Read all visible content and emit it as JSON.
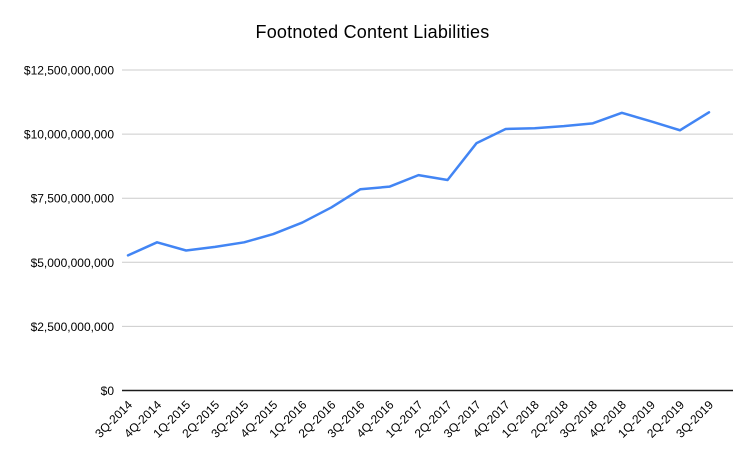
{
  "chart_data": {
    "type": "line",
    "title": "Footnoted Content Liabilities",
    "xlabel": "",
    "ylabel": "",
    "ylim": [
      0,
      12500000000
    ],
    "grid": true,
    "legend": "none",
    "categories": [
      "3Q-2014",
      "4Q-2014",
      "1Q-2015",
      "2Q-2015",
      "3Q-2015",
      "4Q-2015",
      "1Q-2016",
      "2Q-2016",
      "3Q-2016",
      "4Q-2016",
      "1Q-2017",
      "2Q-2017",
      "3Q-2017",
      "4Q-2017",
      "1Q-2018",
      "2Q-2018",
      "3Q-2018",
      "4Q-2018",
      "1Q-2019",
      "2Q-2019",
      "3Q-2019"
    ],
    "series": [
      {
        "name": "Footnoted Content Liabilities",
        "values": [
          5270000000,
          5780000000,
          5460000000,
          5600000000,
          5780000000,
          6100000000,
          6550000000,
          7140000000,
          7850000000,
          7950000000,
          8400000000,
          8210000000,
          9650000000,
          10200000000,
          10230000000,
          10310000000,
          10420000000,
          10830000000,
          10500000000,
          10150000000,
          10850000000
        ]
      }
    ],
    "y_ticks": [
      {
        "value": 0,
        "label": "$0"
      },
      {
        "value": 2500000000,
        "label": "$2,500,000,000"
      },
      {
        "value": 5000000000,
        "label": "$5,000,000,000"
      },
      {
        "value": 7500000000,
        "label": "$7,500,000,000"
      },
      {
        "value": 10000000000,
        "label": "$10,000,000,000"
      },
      {
        "value": 12500000000,
        "label": "$12,500,000,000"
      }
    ],
    "colors": {
      "line": "#4285f4",
      "grid": "#cccccc",
      "axis": "#1a1a1a",
      "text": "#000000",
      "background": "#ffffff"
    }
  }
}
